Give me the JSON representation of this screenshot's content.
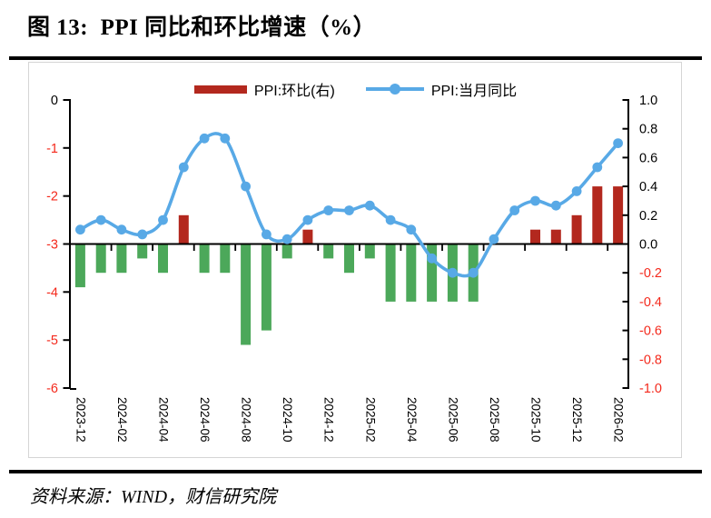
{
  "page": {
    "title": "图 13:  PPI 同比和环比增速（%）",
    "source": "资料来源：WIND，财信研究院"
  },
  "legend": {
    "items": [
      {
        "label": "PPI:环比(右)",
        "type": "bar"
      },
      {
        "label": "PPI:当月同比",
        "type": "line"
      }
    ]
  },
  "colors": {
    "bar_positive": "#B3281E",
    "bar_negative": "#4CA85A",
    "line": "#58A9E6",
    "axis": "#000000",
    "tick_label": "#000000",
    "negative_tick_label": "#F4291C",
    "frame": "#D5D5D5"
  },
  "chart_data": {
    "type": "bar+line combo",
    "title": "图 13: PPI 同比和环比增速（%）",
    "grid": false,
    "legend_position": "top",
    "categories": [
      "2023-12",
      "2024-01",
      "2024-02",
      "2024-03",
      "2024-04",
      "2024-05",
      "2024-06",
      "2024-07",
      "2024-08",
      "2024-09",
      "2024-10",
      "2024-11",
      "2024-12",
      "2025-01",
      "2025-02",
      "2025-03",
      "2025-04",
      "2025-05",
      "2025-06",
      "2025-07",
      "2025-08",
      "2025-09",
      "2025-10",
      "2025-11",
      "2025-12",
      "2026-01",
      "2026-02"
    ],
    "series": [
      {
        "name": "PPI:环比(右)",
        "type": "bar",
        "axis": "right",
        "values": [
          -0.3,
          -0.2,
          -0.2,
          -0.1,
          -0.2,
          0.2,
          -0.2,
          -0.2,
          -0.7,
          -0.6,
          -0.1,
          0.1,
          -0.1,
          -0.2,
          -0.1,
          -0.4,
          -0.4,
          -0.4,
          -0.4,
          -0.4,
          0.0,
          0.0,
          0.1,
          0.1,
          0.2,
          0.4,
          0.4
        ]
      },
      {
        "name": "PPI:当月同比",
        "type": "line",
        "axis": "left",
        "values": [
          -2.7,
          -2.5,
          -2.7,
          -2.8,
          -2.5,
          -1.4,
          -0.8,
          -0.8,
          -1.8,
          -2.8,
          -2.9,
          -2.5,
          -2.3,
          -2.3,
          -2.2,
          -2.5,
          -2.7,
          -3.3,
          -3.6,
          -3.6,
          -2.9,
          -2.3,
          -2.1,
          -2.2,
          -1.9,
          -1.4,
          -0.9
        ]
      }
    ],
    "left_axis": {
      "min": -6,
      "max": 0,
      "tick_labels": [
        "0",
        "-1",
        "-2",
        "-3",
        "-4",
        "-5",
        "-6"
      ]
    },
    "right_axis": {
      "min": -1.0,
      "max": 1.0,
      "tick_labels": [
        "1.0",
        "0.8",
        "0.6",
        "0.4",
        "0.2",
        "0.0",
        "-0.2",
        "-0.4",
        "-0.6",
        "-0.8",
        "-1.0"
      ]
    },
    "x_axis": {
      "tick_labels": [
        "2023-12",
        "2024-02",
        "2024-04",
        "2024-06",
        "2024-08",
        "2024-10",
        "2024-12",
        "2025-02",
        "2025-04",
        "2025-06",
        "2025-08",
        "2025-10",
        "2025-12",
        "2026-02"
      ],
      "label_rotation_deg": 90
    }
  }
}
